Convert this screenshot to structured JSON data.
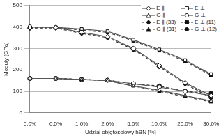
{
  "chart_data": {
    "type": "line",
    "x_label": "Udział objętościowy hBN [%]",
    "y_label": "Moduły [GPa]",
    "categories": [
      "0,0%",
      "0,5%",
      "1,0%",
      "2,0%",
      "5,0%",
      "10,0%",
      "20,0%",
      "30,0%"
    ],
    "ylim": [
      0,
      500
    ],
    "yticks": [
      0,
      100,
      200,
      300,
      400,
      500
    ],
    "grid": true,
    "legend": "top-right",
    "series": [
      {
        "name": "E ∥",
        "color": "#555555",
        "marker": "diamond_open",
        "line_style": "solid",
        "values": [
          400,
          398,
          375,
          355,
          300,
          220,
          140,
          80
        ]
      },
      {
        "name": "E ⊥",
        "color": "#555555",
        "marker": "square_open",
        "line_style": "solid",
        "values": [
          400,
          398,
          390,
          380,
          340,
          295,
          245,
          180
        ]
      },
      {
        "name": "G ∥",
        "color": "#555555",
        "marker": "triangle_open",
        "line_style": "solid",
        "values": [
          160,
          160,
          155,
          150,
          125,
          105,
          80,
          55
        ]
      },
      {
        "name": "G ⊥",
        "color": "#555555",
        "marker": "circle_open",
        "line_style": "solid",
        "values": [
          160,
          160,
          155,
          152,
          135,
          120,
          100,
          80
        ]
      },
      {
        "name": "E ∥ (33)",
        "color": "#333333",
        "marker": "diamond",
        "line_style": "dashed",
        "values": [
          395,
          395,
          370,
          350,
          295,
          215,
          135,
          70
        ]
      },
      {
        "name": "E ⊥ (11)",
        "color": "#333333",
        "marker": "square",
        "line_style": "dashed",
        "values": [
          398,
          398,
          385,
          375,
          335,
          290,
          240,
          175
        ]
      },
      {
        "name": "G ∥ (31)",
        "color": "#333333",
        "marker": "triangle",
        "line_style": "dashed",
        "values": [
          160,
          160,
          155,
          150,
          125,
          100,
          75,
          50
        ]
      },
      {
        "name": "G ⊥ (12)",
        "color": "#333333",
        "marker": "circle",
        "line_style": "dashed",
        "values": [
          160,
          160,
          155,
          152,
          135,
          125,
          100,
          90
        ]
      }
    ]
  }
}
